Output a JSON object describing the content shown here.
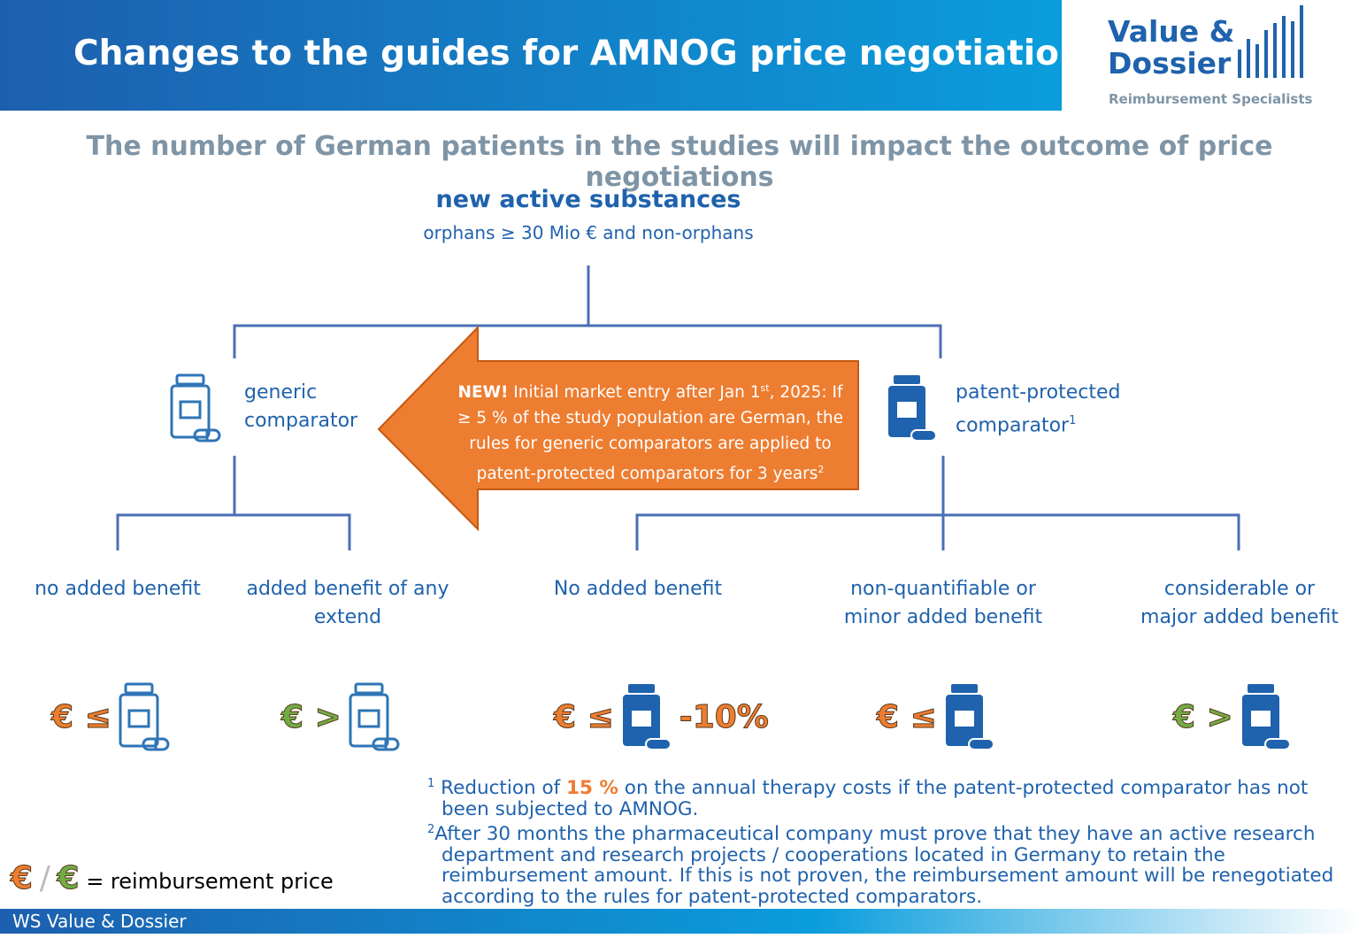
{
  "header": {
    "title": "Changes to the guides for AMNOG price negotiations",
    "logo_line1": "Value &",
    "logo_line2": "Dossier",
    "logo_tagline": "Reimbursement Specialists"
  },
  "subtitle": "The number of German patients in the studies will impact the outcome of price negotiations",
  "root": {
    "title": "new active substances",
    "subtitle": "orphans ≥ 30 Mio € and non-orphans"
  },
  "branches": [
    {
      "label": "generic comparator"
    },
    {
      "label": "patent-protected comparator",
      "footnote_ref": "1"
    }
  ],
  "callout": {
    "lead": "NEW!",
    "text1": " Initial market entry after Jan 1",
    "sup1": "st",
    "text2": ", 2025: If ≥ 5 % of the study population are German, the rules for generic comparators are applied to patent-protected comparators for 3 years",
    "sup2": "2"
  },
  "leaves": [
    {
      "label": "no added benefit",
      "symbol": "€ ≤"
    },
    {
      "label": "added benefit of any extend",
      "symbol": "€ >"
    },
    {
      "label": "No added benefit",
      "symbol": "€ ≤",
      "extra": "-10%"
    },
    {
      "label": "non-quantifiable or minor added benefit",
      "symbol": "€ ≤"
    },
    {
      "label": "considerable or major added benefit",
      "symbol": "€ >"
    }
  ],
  "footnotes": [
    {
      "marker": "1",
      "before": "Reduction of ",
      "highlight": "15 %",
      "after": " on the annual therapy costs if the patent-protected comparator has not been subjected to AMNOG."
    },
    {
      "marker": "2",
      "text": "After 30 months the pharmaceutical company must prove that they have an active research department and research projects / cooperations located in Germany to retain the reimbursement amount. If this is not proven, the reimbursement amount will be renegotiated according to the rules for patent-protected comparators."
    }
  ],
  "legend": {
    "symbol_a": "€",
    "separator": "/",
    "symbol_b": "€",
    "text": "= reimbursement price"
  },
  "footer": "WS Value & Dossier"
}
